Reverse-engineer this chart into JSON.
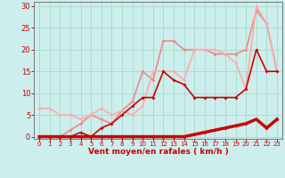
{
  "background_color": "#cceeed",
  "grid_color": "#aaddcc",
  "xlabel": "Vent moyen/en rafales ( km/h )",
  "xlabel_color": "#cc0000",
  "tick_color": "#cc0000",
  "ylabel_ticks": [
    0,
    5,
    10,
    15,
    20,
    25,
    30
  ],
  "xlim": [
    -0.5,
    23.5
  ],
  "ylim": [
    -0.5,
    31
  ],
  "series": [
    {
      "x": [
        0,
        1,
        2,
        3,
        4,
        5,
        6,
        7,
        8,
        9,
        10,
        11,
        12,
        13,
        14,
        15,
        16,
        17,
        18,
        19,
        20,
        21,
        22,
        23
      ],
      "y": [
        0,
        0,
        0,
        0,
        0,
        0,
        0,
        0,
        0,
        0,
        0,
        0,
        0,
        0,
        0,
        0.5,
        1,
        1.5,
        2,
        2.5,
        3,
        4,
        2,
        4
      ],
      "color": "#cc0000",
      "lw": 2.5,
      "marker": "D",
      "ms": 2.0,
      "zorder": 5
    },
    {
      "x": [
        0,
        1,
        2,
        3,
        4,
        5,
        6,
        7,
        8,
        9,
        10,
        11,
        12,
        13,
        14,
        15,
        16,
        17,
        18,
        19,
        20,
        21,
        22,
        23
      ],
      "y": [
        0,
        0,
        0,
        0,
        1,
        0,
        2,
        3,
        5,
        7,
        9,
        9,
        15,
        13,
        12,
        9,
        9,
        9,
        9,
        9,
        11,
        20,
        15,
        15
      ],
      "color": "#cc0000",
      "lw": 1.2,
      "marker": "D",
      "ms": 2.0,
      "zorder": 4
    },
    {
      "x": [
        0,
        1,
        2,
        3,
        4,
        5,
        6,
        7,
        8,
        9,
        10,
        11,
        12,
        13,
        14,
        15,
        16,
        17,
        18,
        19,
        20,
        21,
        22,
        23
      ],
      "y": [
        6.5,
        6.5,
        5,
        5,
        4,
        5,
        6.5,
        5,
        6,
        5,
        7,
        15,
        15,
        15,
        13,
        20,
        20,
        20,
        19,
        17,
        11,
        30,
        26,
        15
      ],
      "color": "#ffaaaa",
      "lw": 1.2,
      "marker": "D",
      "ms": 2.0,
      "zorder": 3
    },
    {
      "x": [
        0,
        1,
        2,
        3,
        4,
        5,
        6,
        7,
        8,
        9,
        10,
        11,
        12,
        13,
        14,
        15,
        16,
        17,
        18,
        19,
        20,
        21,
        22,
        23
      ],
      "y": [
        0,
        0,
        0,
        1.5,
        3,
        5,
        4,
        3,
        6,
        8,
        15,
        13,
        22,
        22,
        20,
        20,
        20,
        19,
        19,
        19,
        20,
        29,
        26,
        15
      ],
      "color": "#ee8888",
      "lw": 1.2,
      "marker": "D",
      "ms": 2.0,
      "zorder": 2
    }
  ]
}
